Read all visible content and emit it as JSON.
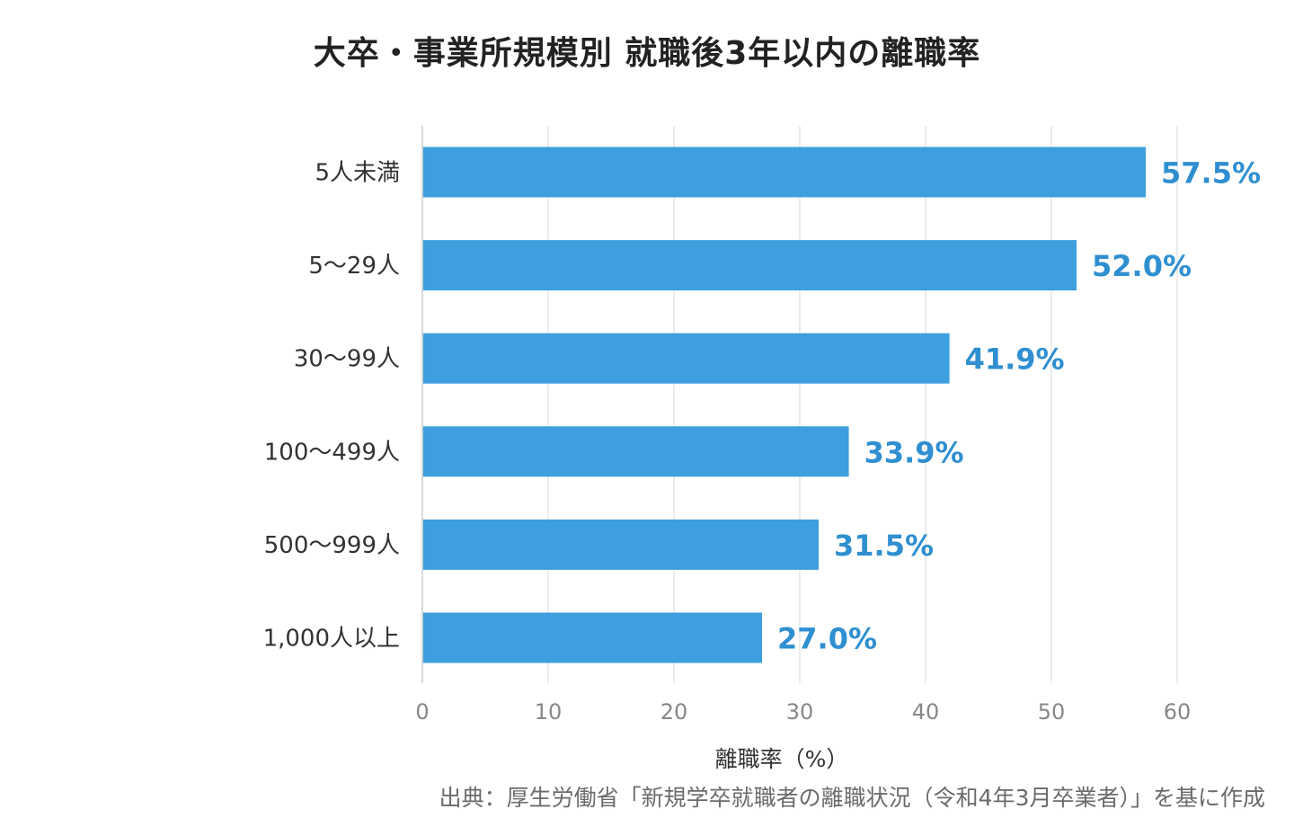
{
  "chart_data": {
    "type": "bar",
    "orientation": "horizontal",
    "title": "大卒・事業所規模別 就職後3年以内の離職率",
    "categories": [
      "5人未満",
      "5〜29人",
      "30〜99人",
      "100〜499人",
      "500〜999人",
      "1,000人以上"
    ],
    "values": [
      57.5,
      52.0,
      41.9,
      33.9,
      31.5,
      27.0
    ],
    "value_labels": [
      "57.5%",
      "52.0%",
      "41.9%",
      "33.9%",
      "31.5%",
      "27.0%"
    ],
    "xlabel": "離職率（%）",
    "ylabel": "",
    "xlim": [
      0,
      60
    ],
    "xticks": [
      0,
      10,
      20,
      30,
      40,
      50,
      60
    ],
    "grid": true,
    "legend": "none",
    "source": "出典：厚生労働省「新規学卒就職者の離職状況（令和4年3月卒業者）」を基に作成",
    "colors": {
      "bar": "#3d9fdd",
      "value_label": "#2f8fd1",
      "grid": "#e6e6e6",
      "axis": "#cccccc",
      "category_label": "#333333",
      "tick_label": "#888888"
    }
  }
}
